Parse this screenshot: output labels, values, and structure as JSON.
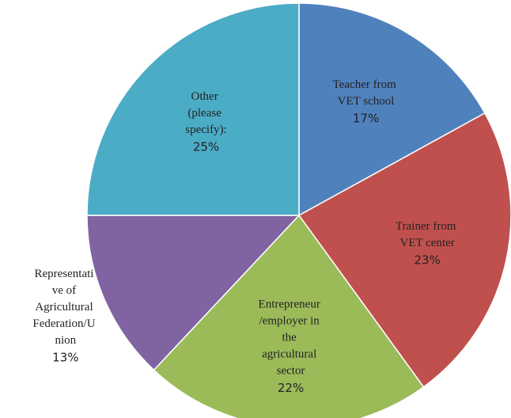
{
  "chart_data": {
    "type": "pie",
    "categories": [
      "Teacher from VET school",
      "Trainer from VET center",
      "Entrepreneur /employer in the agricultural sector",
      "Representative of Agricultural Federation/Union",
      "Other (please specify):"
    ],
    "values": [
      17,
      23,
      22,
      13,
      25
    ],
    "value_labels": [
      "17%",
      "23%",
      "22%",
      "13%",
      "25%"
    ],
    "colors": [
      "#4f81bd",
      "#c0504d",
      "#9bbb59",
      "#8064a2",
      "#4bacc6"
    ]
  }
}
